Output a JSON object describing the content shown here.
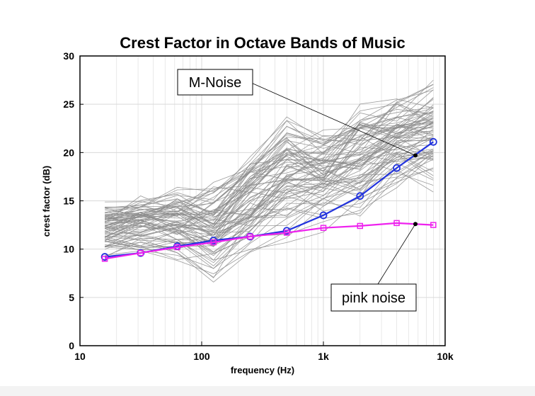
{
  "chart_data": {
    "type": "line",
    "title": "Crest Factor in Octave Bands of Music",
    "xlabel": "frequency (Hz)",
    "ylabel": "crest factor (dB)",
    "x_scale": "log",
    "xlim": [
      10,
      10000
    ],
    "ylim": [
      0,
      30
    ],
    "x_ticks": [
      10,
      100,
      1000,
      10000
    ],
    "x_tick_labels": [
      "10",
      "100",
      "1k",
      "10k"
    ],
    "y_ticks": [
      0,
      5,
      10,
      15,
      20,
      25,
      30
    ],
    "y_tick_labels": [
      "0",
      "5",
      "10",
      "15",
      "20",
      "25",
      "30"
    ],
    "grid": true,
    "x": [
      16,
      31.5,
      63,
      125,
      250,
      500,
      1000,
      2000,
      4000,
      8000
    ],
    "background_line_count": 80,
    "background_range": {
      "min": [
        8.5,
        9.0,
        8.3,
        6.4,
        9.0,
        10.0,
        11.5,
        12.5,
        15.0,
        15.5
      ],
      "max": [
        15.3,
        15.8,
        16.7,
        17.5,
        20.3,
        24.7,
        23.0,
        26.0,
        27.0,
        28.0
      ]
    },
    "series": [
      {
        "name": "M-Noise",
        "color": "#2233dd",
        "marker": "circle",
        "values": [
          9.2,
          9.6,
          10.3,
          10.9,
          11.3,
          11.9,
          13.5,
          15.5,
          18.4,
          21.1
        ]
      },
      {
        "name": "pink noise",
        "color": "#ee22ee",
        "marker": "square",
        "values": [
          9.0,
          9.6,
          10.2,
          10.7,
          11.3,
          11.7,
          12.2,
          12.4,
          12.7,
          12.5
        ]
      }
    ],
    "annotations": [
      {
        "text": "M-Noise",
        "target_series": "M-Noise",
        "target_x": 5700,
        "target_y": 19.7
      },
      {
        "text": "pink noise",
        "target_series": "pink noise",
        "target_x": 5700,
        "target_y": 12.6
      }
    ],
    "colors": {
      "grid": "#d9d9d9",
      "background_lines": "#8c8c8c"
    }
  }
}
